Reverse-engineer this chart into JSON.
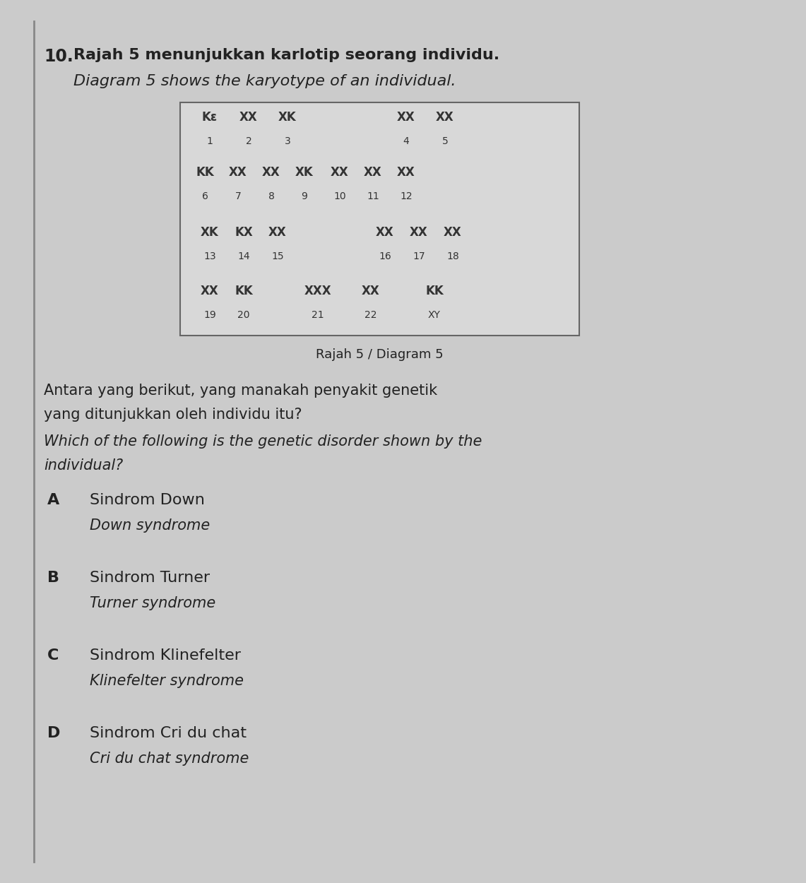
{
  "question_number": "10.",
  "title_malay": "Rajah 5 menunjukkan karlotip seorang individu.",
  "title_english": "Diagram 5 shows the karyotype of an individual.",
  "diagram_label": "Rajah 5 / Diagram 5",
  "question_malay_line1": "Antara yang berikut, yang manakah penyakit genetik",
  "question_malay_line2": "yang ditunjukkan oleh individu itu?",
  "question_english_line1": "Which of the following is the genetic disorder shown by the",
  "question_english_line2": "individual?",
  "options": [
    {
      "letter": "A",
      "malay": "Sindrom Down",
      "english": "Down syndrome"
    },
    {
      "letter": "B",
      "malay": "Sindrom Turner",
      "english": "Turner syndrome"
    },
    {
      "letter": "C",
      "malay": "Sindrom Klinefelter",
      "english": "Klinefelter syndrome"
    },
    {
      "letter": "D",
      "malay": "Sindrom Cri du chat",
      "english": "Cri du chat syndrome"
    }
  ],
  "bg_color": "#cbcbcb",
  "page_bg": "#c2c2c2",
  "content_bg": "#d0d0d0",
  "text_color": "#222222",
  "box_bg": "#d8d8d8",
  "box_edge": "#666666"
}
